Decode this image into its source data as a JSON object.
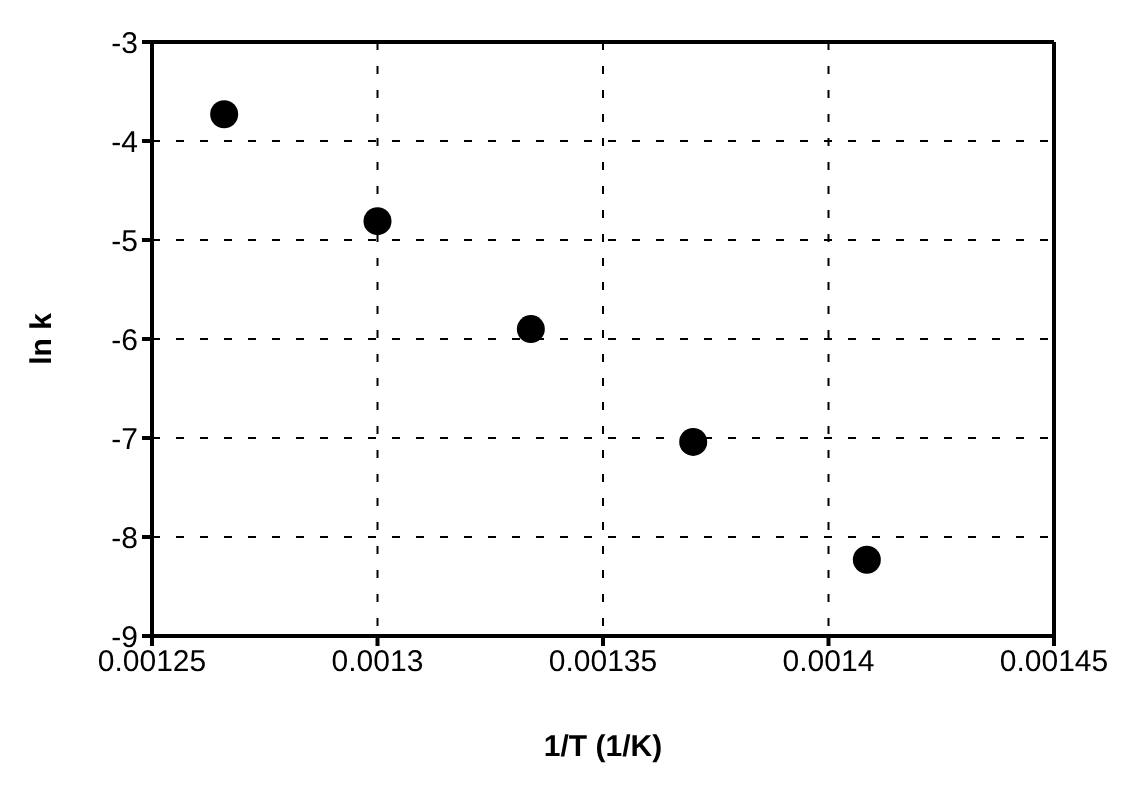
{
  "chart_data": {
    "type": "scatter",
    "xlabel": "1/T (1/K)",
    "ylabel": "ln k",
    "x": [
      0.001266,
      0.0013,
      0.001334,
      0.00137,
      0.0014085
    ],
    "series": [
      {
        "color": "#000000",
        "values": [
          -3.73,
          -4.81,
          -5.9,
          -7.04,
          -8.23
        ]
      }
    ],
    "xlim": [
      0.00125,
      0.00145
    ],
    "xticks": [
      0.00125,
      0.0013,
      0.00135,
      0.0014,
      0.00145
    ],
    "ylim": [
      -9,
      -3
    ],
    "yticks": [
      -9,
      -8,
      -7,
      -6,
      -5,
      -4,
      -3
    ],
    "grid": true,
    "marker": "circle",
    "legend": false
  }
}
